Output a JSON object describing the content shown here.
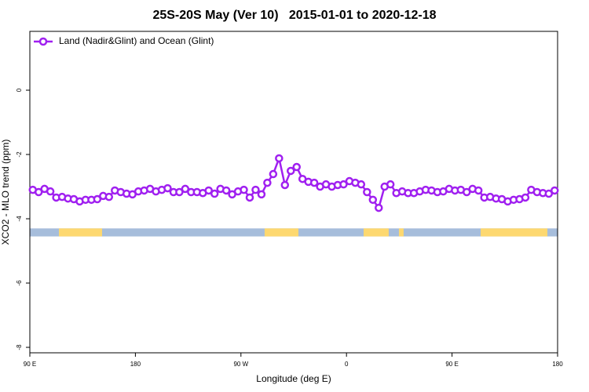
{
  "chart_data": {
    "type": "line",
    "title": "25S-20S May (Ver 10)   2015-01-01 to 2020-12-18",
    "xlabel": "Longitude (deg E)",
    "ylabel": "XCO2 - MLO trend (ppm)",
    "xlim": [
      90,
      540
    ],
    "ylim": [
      -8.17,
      1.83
    ],
    "xticks": [
      {
        "value": 90,
        "label": "90 E"
      },
      180,
      {
        "value": 270,
        "label": "90 W"
      },
      {
        "value": 360,
        "label": "0"
      },
      {
        "value": 450,
        "label": "90 E"
      },
      {
        "value": 540,
        "label": "180"
      }
    ],
    "yticks": [
      0,
      -2,
      -4,
      -6,
      -8
    ],
    "legend": "top-left",
    "x": [
      92.5,
      97.5,
      102.5,
      107.5,
      112.5,
      117.5,
      122.5,
      127.5,
      132.5,
      137.5,
      142.5,
      147.5,
      152.5,
      157.5,
      162.5,
      167.5,
      172.5,
      177.5,
      182.5,
      187.5,
      192.5,
      197.5,
      202.5,
      207.5,
      212.5,
      217.5,
      222.5,
      227.5,
      232.5,
      237.5,
      242.5,
      247.5,
      252.5,
      257.5,
      262.5,
      267.5,
      272.5,
      277.5,
      282.5,
      287.5,
      292.5,
      297.5,
      302.5,
      307.5,
      312.5,
      317.5,
      322.5,
      327.5,
      332.5,
      337.5,
      342.5,
      347.5,
      352.5,
      357.5,
      362.5,
      367.5,
      372.5,
      377.5,
      382.5,
      387.5,
      392.5,
      397.5,
      402.5,
      407.5,
      412.5,
      417.5,
      422.5,
      427.5,
      432.5,
      437.5,
      442.5,
      447.5,
      452.5,
      457.5,
      462.5,
      467.5,
      472.5,
      477.5,
      482.5,
      487.5,
      492.5,
      497.5,
      502.5,
      507.5,
      512.5,
      517.5,
      522.5,
      527.5,
      532.5,
      537.5
    ],
    "series": [
      {
        "name": "Land (Nadir&Glint) and Ocean (Glint)",
        "color": "#a020f0",
        "values": [
          -3.1,
          -3.17,
          -3.07,
          -3.15,
          -3.34,
          -3.32,
          -3.37,
          -3.39,
          -3.46,
          -3.41,
          -3.41,
          -3.39,
          -3.29,
          -3.32,
          -3.12,
          -3.17,
          -3.22,
          -3.24,
          -3.15,
          -3.12,
          -3.07,
          -3.15,
          -3.1,
          -3.05,
          -3.17,
          -3.17,
          -3.07,
          -3.17,
          -3.17,
          -3.2,
          -3.12,
          -3.22,
          -3.07,
          -3.12,
          -3.24,
          -3.15,
          -3.1,
          -3.34,
          -3.1,
          -3.24,
          -2.88,
          -2.61,
          -2.12,
          -2.95,
          -2.51,
          -2.39,
          -2.76,
          -2.85,
          -2.88,
          -3.0,
          -2.93,
          -3.0,
          -2.95,
          -2.93,
          -2.83,
          -2.88,
          -2.93,
          -3.17,
          -3.41,
          -3.66,
          -3.0,
          -2.93,
          -3.2,
          -3.15,
          -3.2,
          -3.2,
          -3.15,
          -3.1,
          -3.12,
          -3.17,
          -3.15,
          -3.07,
          -3.12,
          -3.1,
          -3.17,
          -3.07,
          -3.12,
          -3.34,
          -3.32,
          -3.37,
          -3.39,
          -3.46,
          -3.41,
          -3.39,
          -3.34,
          -3.1,
          -3.17,
          -3.2,
          -3.22,
          -3.12
        ]
      }
    ],
    "band_range": [
      -4.55,
      -4.3
    ],
    "ocean_color": "#a6bddb",
    "land_color": "#fdd870",
    "land": [
      [
        114.8,
        151.6
      ],
      [
        290.2,
        319.0
      ],
      [
        374.6,
        396.0
      ],
      [
        404.7,
        408.7
      ],
      [
        474.4,
        531.3
      ]
    ]
  }
}
